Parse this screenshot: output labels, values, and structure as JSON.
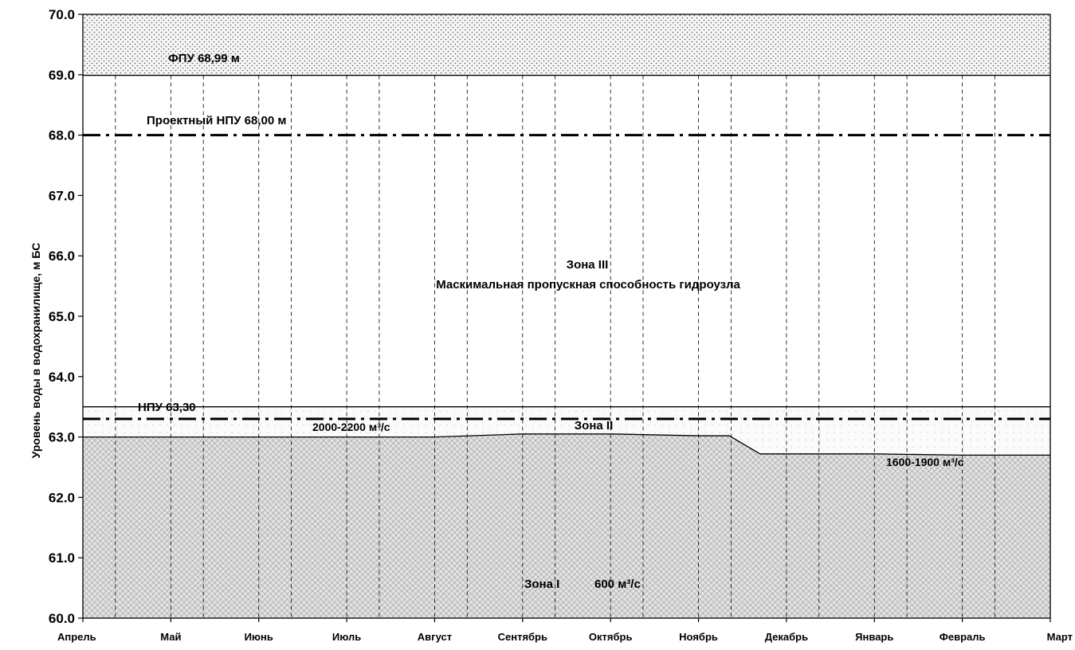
{
  "chart_data": {
    "type": "area",
    "title": "",
    "xlabel": "",
    "ylabel": "Уровень воды в водохранилище, м БС",
    "ylim": [
      60.0,
      70.0
    ],
    "y_ticks": [
      "60.0",
      "61.0",
      "62.0",
      "63.0",
      "64.0",
      "65.0",
      "66.0",
      "67.0",
      "68.0",
      "69.0",
      "70.0"
    ],
    "categories": [
      "Апрель",
      "Май",
      "Июнь",
      "Июль",
      "Август",
      "Сентябрь",
      "Октябрь",
      "Ноябрь",
      "Декабрь",
      "Январь",
      "Февраль",
      "Март"
    ],
    "grid": "vertical dashed lines at month boundaries and mid-month points",
    "zone_boundaries": {
      "zone1_upper": {
        "x": [
          0,
          1,
          2,
          3,
          4,
          5,
          6,
          7,
          7.35,
          7.7,
          8,
          9,
          10,
          11
        ],
        "y": [
          63.0,
          63.0,
          63.0,
          63.0,
          63.0,
          63.05,
          63.05,
          63.02,
          63.02,
          62.72,
          62.72,
          62.72,
          62.7,
          62.7
        ]
      },
      "zone2_upper": 63.5,
      "fpu_level": 68.99,
      "design_npu_level": 68.0,
      "npu_level": 63.3
    },
    "annotations": {
      "fpu": "ФПУ 68,99 м",
      "design_npu": "Проектный НПУ 68,00 м",
      "npu": "НПУ 63,30",
      "zone3_title": "Зона III",
      "zone3_desc": "Маскимальная пропускная способность гидроузла",
      "zone2_title": "Зона II",
      "zone2_flow_left": "2000-2200 м³/с",
      "zone2_flow_right": "1600-1900 м³/с",
      "zone1_title": "Зона I",
      "zone1_flow": "600 м³/с"
    }
  }
}
